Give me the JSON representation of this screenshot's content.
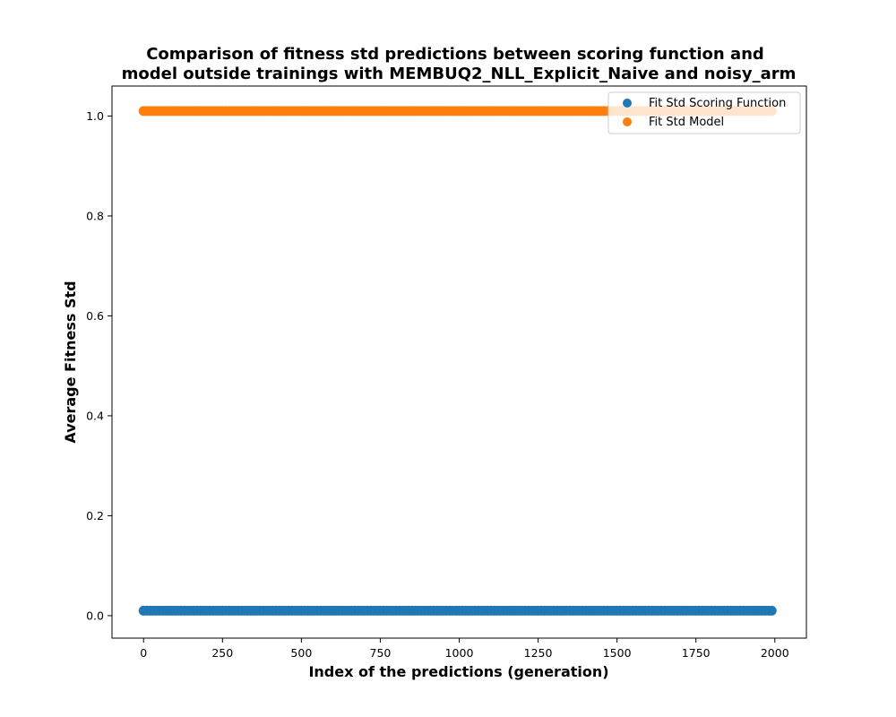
{
  "chart_data": {
    "type": "scatter",
    "title_lines": [
      "Comparison of fitness std predictions between scoring function and",
      "model outside trainings with MEMBUQ2_NLL_Explicit_Naive and noisy_arm"
    ],
    "xlabel": "Index of the predictions (generation)",
    "ylabel": "Average Fitness Std",
    "xlim": [
      -100,
      2100
    ],
    "ylim": [
      -0.045,
      1.06
    ],
    "x_ticks": [
      0,
      250,
      500,
      750,
      1000,
      1250,
      1500,
      1750,
      2000
    ],
    "y_ticks": [
      0.0,
      0.2,
      0.4,
      0.6,
      0.8,
      1.0
    ],
    "x_tick_labels": [
      "0",
      "250",
      "500",
      "750",
      "1000",
      "1250",
      "1500",
      "1750",
      "2000"
    ],
    "y_tick_labels": [
      "0.0",
      "0.2",
      "0.4",
      "0.6",
      "0.8",
      "1.0"
    ],
    "grid": false,
    "legend_position": "top-right",
    "series": [
      {
        "name": "Fit Std Scoring Function",
        "color": "#1f77b4",
        "x_start": 0,
        "x_end": 1999,
        "value": 0.01
      },
      {
        "name": "Fit Std Model",
        "color": "#ff7f0e",
        "x_start": 0,
        "x_end": 1999,
        "value": 1.01
      }
    ]
  }
}
